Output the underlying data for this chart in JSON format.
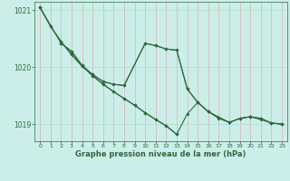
{
  "background_color": "#cceee8",
  "grid_color": "#aaddcc",
  "line_color": "#2d6a3f",
  "xlabel": "Graphe pression niveau de la mer (hPa)",
  "ylim": [
    1018.7,
    1021.15
  ],
  "xlim": [
    -0.5,
    23.5
  ],
  "yticks": [
    1019,
    1020,
    1021
  ],
  "xticks": [
    0,
    1,
    2,
    3,
    4,
    5,
    6,
    7,
    8,
    9,
    10,
    11,
    12,
    13,
    14,
    15,
    16,
    17,
    18,
    19,
    20,
    21,
    22,
    23
  ],
  "series": [
    {
      "x": [
        0,
        1,
        2,
        3,
        4,
        5,
        6,
        7,
        8,
        9,
        10,
        11,
        12,
        13
      ],
      "y": [
        1021.05,
        1020.72,
        1020.45,
        1020.22,
        1020.02,
        1019.85,
        1019.7,
        1019.57,
        1019.45,
        1019.33,
        1019.2,
        1019.08,
        1018.97,
        1018.82
      ]
    },
    {
      "x": [
        0,
        2,
        3,
        4,
        5,
        6,
        7,
        8,
        10,
        11,
        12,
        13,
        14,
        15,
        16,
        17,
        18,
        19,
        20,
        21,
        22,
        23
      ],
      "y": [
        1021.05,
        1020.42,
        1020.28,
        1020.03,
        1019.87,
        1019.75,
        1019.7,
        1019.68,
        1020.42,
        1020.38,
        1020.32,
        1020.3,
        1019.62,
        1019.38,
        1019.22,
        1019.12,
        1019.03,
        1019.1,
        1019.13,
        1019.1,
        1019.02,
        1019.0
      ]
    },
    {
      "x": [
        0,
        1,
        2,
        3,
        4,
        5,
        6,
        7,
        8,
        9,
        10,
        11,
        12,
        13,
        14,
        15,
        16,
        17,
        18,
        19,
        20,
        21,
        22,
        23
      ],
      "y": [
        1021.05,
        1020.72,
        1020.45,
        1020.22,
        1020.02,
        1019.85,
        1019.7,
        1019.57,
        1019.45,
        1019.33,
        1019.2,
        1019.08,
        1018.97,
        1018.82,
        1019.18,
        1019.38,
        1019.22,
        1019.1,
        1019.03,
        1019.1,
        1019.13,
        1019.08,
        1019.02,
        1019.0
      ]
    },
    {
      "x": [
        2,
        3,
        4,
        5,
        6,
        7,
        8,
        10,
        11,
        12,
        13,
        14,
        15,
        16,
        17,
        18,
        19,
        20,
        21,
        22,
        23
      ],
      "y": [
        1020.42,
        1020.28,
        1020.03,
        1019.87,
        1019.75,
        1019.7,
        1019.68,
        1020.42,
        1020.38,
        1020.32,
        1020.3,
        1019.62,
        1019.38,
        1019.22,
        1019.12,
        1019.03,
        1019.1,
        1019.13,
        1019.1,
        1019.02,
        1019.0
      ]
    }
  ]
}
